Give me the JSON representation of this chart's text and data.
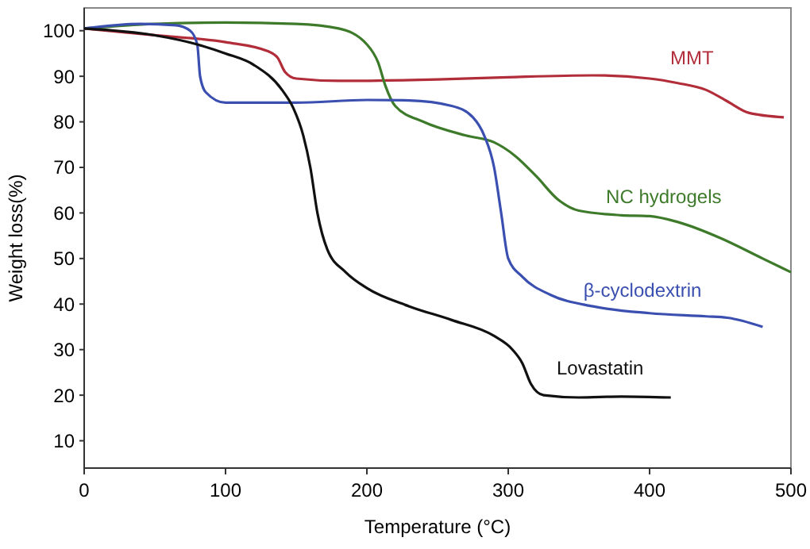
{
  "chart_data": {
    "type": "line",
    "xlabel": "Temperature (°C)",
    "ylabel": "Weight loss(%)",
    "xlim": [
      0,
      500
    ],
    "xticks": [
      0,
      100,
      200,
      300,
      400,
      500
    ],
    "ylim": [
      4,
      105
    ],
    "yticks": [
      10,
      20,
      30,
      40,
      50,
      60,
      70,
      80,
      90,
      100
    ],
    "grid": false,
    "marker": "none",
    "line_style": "solid",
    "series": [
      {
        "name": "MMT",
        "color": "#b22d3a",
        "x": [
          0,
          50,
          100,
          130,
          137,
          142,
          150,
          180,
          250,
          300,
          360,
          400,
          420,
          440,
          455,
          470,
          495
        ],
        "values": [
          100.5,
          99,
          97.5,
          95.5,
          94,
          91,
          89.5,
          89,
          89.3,
          89.8,
          90.2,
          89.5,
          88.5,
          87,
          84.5,
          82,
          81
        ]
      },
      {
        "name": "NC hydrogels",
        "color": "#3d7a2a",
        "x": [
          0,
          50,
          100,
          150,
          180,
          200,
          208,
          213,
          220,
          240,
          270,
          290,
          305,
          320,
          335,
          350,
          380,
          400,
          420,
          450,
          480,
          500
        ],
        "values": [
          100.5,
          101.5,
          101.8,
          101.5,
          100.5,
          97,
          93,
          88,
          83.5,
          80,
          77,
          75.5,
          72.5,
          68,
          63,
          60.5,
          59.5,
          59.3,
          58,
          54.5,
          50,
          47
        ]
      },
      {
        "name": "β-cyclodextrin",
        "color": "#3a4fb0",
        "x": [
          0,
          40,
          65,
          75,
          80,
          82,
          86,
          100,
          150,
          200,
          230,
          260,
          275,
          283,
          290,
          295,
          300,
          310,
          330,
          360,
          400,
          440,
          455,
          480
        ],
        "values": [
          100.5,
          101.5,
          101.2,
          100,
          97,
          90,
          86.5,
          84.2,
          84.2,
          84.8,
          84.7,
          83.5,
          81,
          77,
          70,
          60,
          50,
          46,
          42,
          39.5,
          38,
          37.3,
          37,
          35
        ]
      },
      {
        "name": "Lovastatin",
        "color": "#111111",
        "x": [
          0,
          50,
          80,
          100,
          120,
          140,
          148,
          155,
          160,
          165,
          172,
          185,
          200,
          230,
          260,
          290,
          303,
          310,
          316,
          325,
          350,
          380,
          415
        ],
        "values": [
          100.5,
          99,
          97,
          95,
          92.5,
          87,
          83,
          77,
          70,
          60,
          52,
          47,
          43.5,
          39.5,
          36.5,
          33,
          30,
          27,
          22.5,
          20,
          19.5,
          19.7,
          19.5
        ]
      }
    ]
  }
}
